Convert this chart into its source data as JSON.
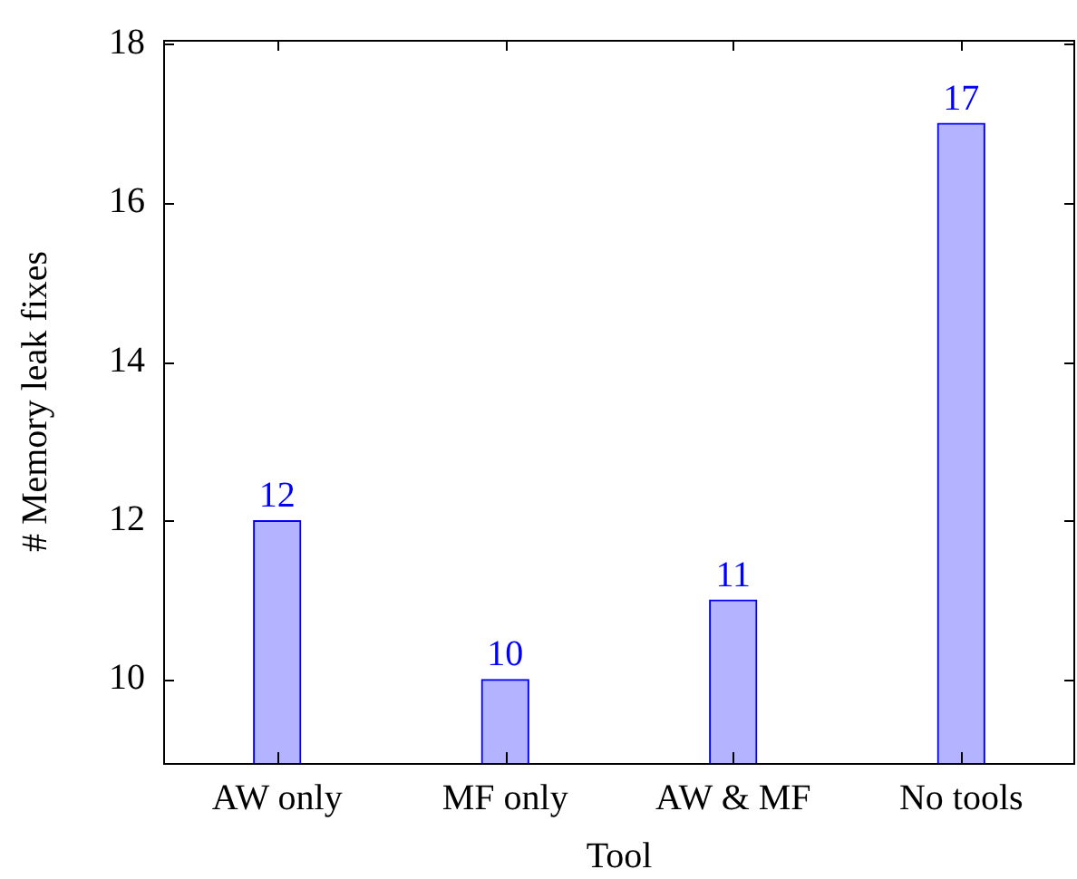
{
  "chart_data": {
    "type": "bar",
    "xlabel": "Tool",
    "ylabel": "# Memory leak fixes",
    "categories": [
      "AW only",
      "MF only",
      "AW & MF",
      "No tools"
    ],
    "values": [
      12,
      10,
      11,
      17
    ],
    "color": "#b3b3ff",
    "ylim": [
      8.95,
      18.05
    ],
    "yticks": [
      10,
      12,
      14,
      16,
      18
    ],
    "grid": false,
    "data_labels": true
  }
}
